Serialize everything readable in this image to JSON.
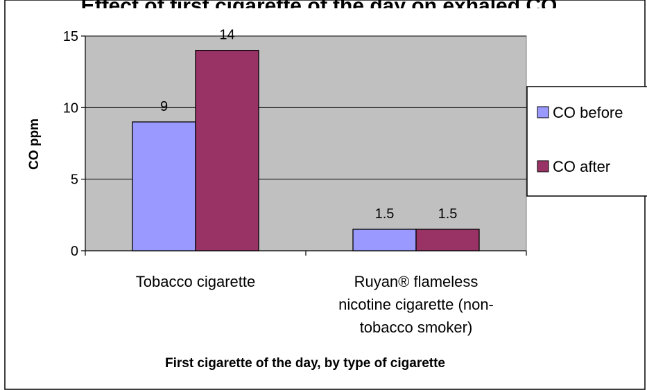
{
  "chart_data": {
    "type": "bar",
    "title": "Effect of first cigarette of the day on exhaled CO",
    "categories": [
      [
        "Tobacco cigarette"
      ],
      [
        "Ruyan®  flameless",
        "nicotine cigarette (non-",
        "tobacco smoker)"
      ]
    ],
    "series": [
      {
        "name": "CO before",
        "values": [
          9,
          1.5
        ],
        "color": "#9999ff"
      },
      {
        "name": "CO after",
        "values": [
          14,
          1.5
        ],
        "color": "#993366"
      }
    ],
    "data_labels": [
      [
        "9",
        "1.5"
      ],
      [
        "14",
        "1.5"
      ]
    ],
    "ylabel": "CO ppm",
    "xlabel": "First cigarette of the day, by type of cigarette",
    "ylim": [
      0,
      15
    ],
    "yticks": [
      0,
      5,
      10,
      15
    ],
    "grid": true,
    "plot_background": "#c0c0c0",
    "legend_position": "right"
  }
}
